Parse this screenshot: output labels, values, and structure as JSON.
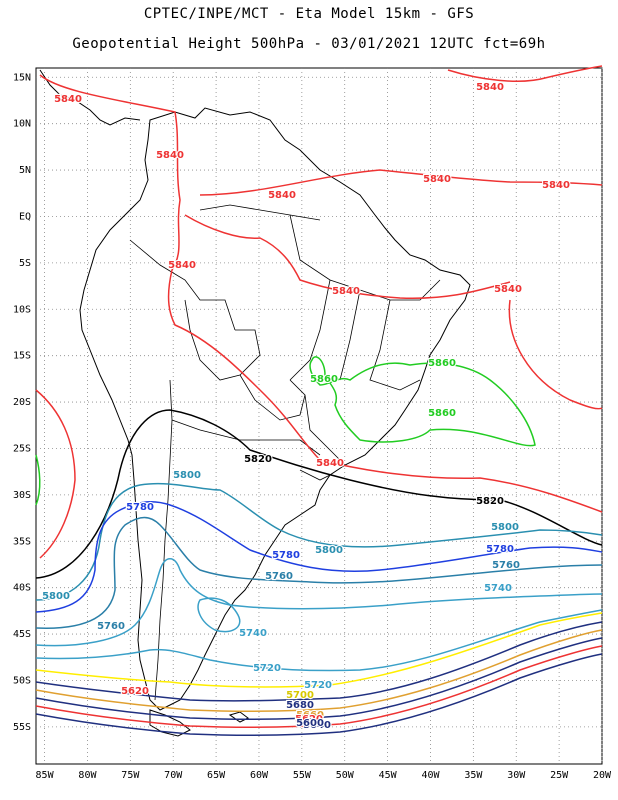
{
  "header": {
    "line1": "CPTEC/INPE/MCT -  Eta Model 15km - GFS",
    "line2": "Geopotential Height 500hPa - 03/01/2021 12UTC fct=69h"
  },
  "map": {
    "lon_range": [
      -86,
      -20
    ],
    "lat_range": [
      -59,
      16
    ],
    "lat_ticks": [
      "15N",
      "10N",
      "5N",
      "EQ",
      "5S",
      "10S",
      "15S",
      "20S",
      "25S",
      "30S",
      "35S",
      "40S",
      "45S",
      "50S",
      "55S"
    ],
    "lon_ticks": [
      "85W",
      "80W",
      "75W",
      "70W",
      "65W",
      "60W",
      "55W",
      "50W",
      "45W",
      "40W",
      "35W",
      "30W",
      "25W",
      "20W"
    ],
    "grid": true,
    "contour_colors": {
      "5860": "#22cc22",
      "5840": "#ee3333",
      "5820": "#000000",
      "5800": "#2a8fb0",
      "5780": "#1f3fe0",
      "5760": "#2a7fa8",
      "5740": "#3aa0c8",
      "5720": "#3aa0c8",
      "5700": "#ffee00",
      "5680": "#203080",
      "5660": "#e0a030",
      "5640": "#203080",
      "5620": "#ee3333",
      "5600": "#203080"
    },
    "contour_labels": [
      {
        "text": "5840",
        "color": "#ee3333"
      },
      {
        "text": "5840",
        "color": "#ee3333"
      },
      {
        "text": "5840",
        "color": "#ee3333"
      },
      {
        "text": "5840",
        "color": "#ee3333"
      },
      {
        "text": "5840",
        "color": "#ee3333"
      },
      {
        "text": "5840",
        "color": "#ee3333"
      },
      {
        "text": "5840",
        "color": "#ee3333"
      },
      {
        "text": "5840",
        "color": "#ee3333"
      },
      {
        "text": "5840",
        "color": "#ee3333"
      },
      {
        "text": "5840",
        "color": "#ee3333"
      },
      {
        "text": "5860",
        "color": "#22cc22"
      },
      {
        "text": "5860",
        "color": "#22cc22"
      },
      {
        "text": "5860",
        "color": "#22cc22"
      },
      {
        "text": "5820",
        "color": "#000000"
      },
      {
        "text": "5820",
        "color": "#000000"
      },
      {
        "text": "5800",
        "color": "#2a8fb0"
      },
      {
        "text": "5800",
        "color": "#2a8fb0"
      },
      {
        "text": "5800",
        "color": "#2a8fb0"
      },
      {
        "text": "5800",
        "color": "#2a8fb0"
      },
      {
        "text": "5780",
        "color": "#1f3fe0"
      },
      {
        "text": "5780",
        "color": "#1f3fe0"
      },
      {
        "text": "5780",
        "color": "#1f3fe0"
      },
      {
        "text": "5760",
        "color": "#2a7fa8"
      },
      {
        "text": "5760",
        "color": "#2a7fa8"
      },
      {
        "text": "5760",
        "color": "#2a7fa8"
      },
      {
        "text": "5740",
        "color": "#3aa0c8"
      },
      {
        "text": "5740",
        "color": "#3aa0c8"
      },
      {
        "text": "5720",
        "color": "#3aa0c8"
      },
      {
        "text": "5720",
        "color": "#3aa0c8"
      },
      {
        "text": "5700",
        "color": "#d8c800"
      },
      {
        "text": "5680",
        "color": "#203080"
      },
      {
        "text": "5660",
        "color": "#e0a030"
      },
      {
        "text": "5640",
        "color": "#203080"
      },
      {
        "text": "5620",
        "color": "#ee3333"
      },
      {
        "text": "5620",
        "color": "#ee3333"
      },
      {
        "text": "5600",
        "color": "#203080"
      }
    ]
  }
}
